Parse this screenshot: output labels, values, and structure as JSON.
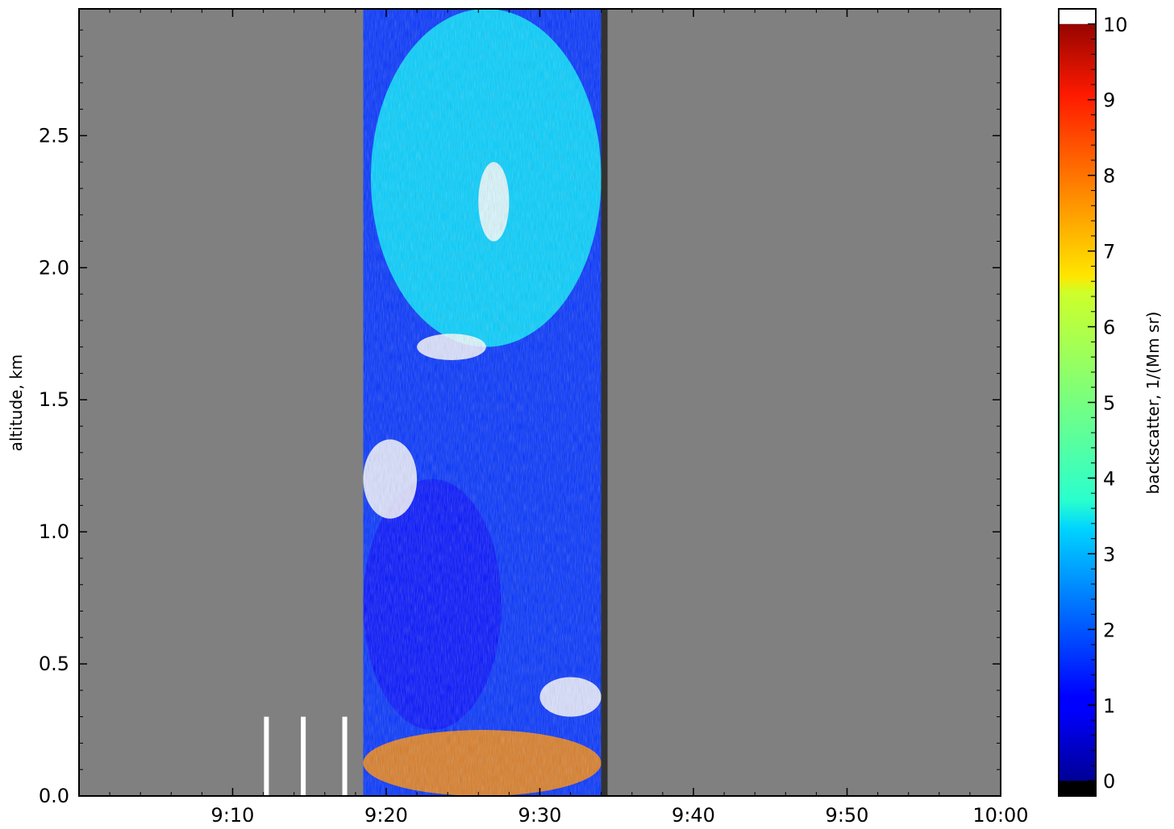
{
  "chart_data": {
    "type": "heatmap",
    "title": "",
    "xlabel": "",
    "ylabel": "altitude, km",
    "x_tick_labels": [
      "9:10",
      "9:20",
      "9:30",
      "9:40",
      "9:50",
      "10:00"
    ],
    "x_ticks_minutes": [
      10,
      20,
      30,
      40,
      50,
      60
    ],
    "xlim_minutes": [
      0,
      60
    ],
    "y_tick_labels": [
      "0.0",
      "0.5",
      "1.0",
      "1.5",
      "2.0",
      "2.5"
    ],
    "y_ticks": [
      0,
      0.5,
      1.0,
      1.5,
      2.0,
      2.5
    ],
    "ylim": [
      0,
      2.98
    ],
    "background_color": "#808080",
    "colorbar": {
      "label": "backscatter, 1/(Mm sr)",
      "tick_labels": [
        "0",
        "1",
        "2",
        "3",
        "4",
        "5",
        "6",
        "7",
        "8",
        "9",
        "10"
      ],
      "ticks": [
        0,
        1,
        2,
        3,
        4,
        5,
        6,
        7,
        8,
        9,
        10
      ],
      "range": [
        -0.2,
        10.2
      ],
      "colormap": "jet",
      "under_color": "#000000",
      "over_color": "#ffffff"
    },
    "data_window_minutes": [
      18.5,
      34.0
    ],
    "dark_boundary_minute": 34.2,
    "sparse_profile_minutes": [
      12.2,
      14.6,
      17.3
    ],
    "features": [
      {
        "name": "surface layer",
        "x": [
          18.5,
          34
        ],
        "y": [
          0,
          0.25
        ],
        "value": 7.5
      },
      {
        "name": "lower aerosol region",
        "x": [
          18.5,
          27.5
        ],
        "y": [
          0.25,
          1.2
        ],
        "value": 1.2
      },
      {
        "name": "upper plume",
        "x": [
          19,
          34
        ],
        "y": [
          1.7,
          2.98
        ],
        "value": 3.5
      },
      {
        "name": "dense plume core",
        "x": [
          26,
          28
        ],
        "y": [
          2.1,
          2.4
        ],
        "value": 10.5
      },
      {
        "name": "cloud patch",
        "x": [
          18.5,
          22
        ],
        "y": [
          1.05,
          1.35
        ],
        "value": 10.5
      },
      {
        "name": "cloud patch",
        "x": [
          22,
          26.5
        ],
        "y": [
          1.65,
          1.75
        ],
        "value": 10.5
      },
      {
        "name": "cloud patch",
        "x": [
          30,
          34
        ],
        "y": [
          0.3,
          0.45
        ],
        "value": 10.5
      }
    ]
  }
}
